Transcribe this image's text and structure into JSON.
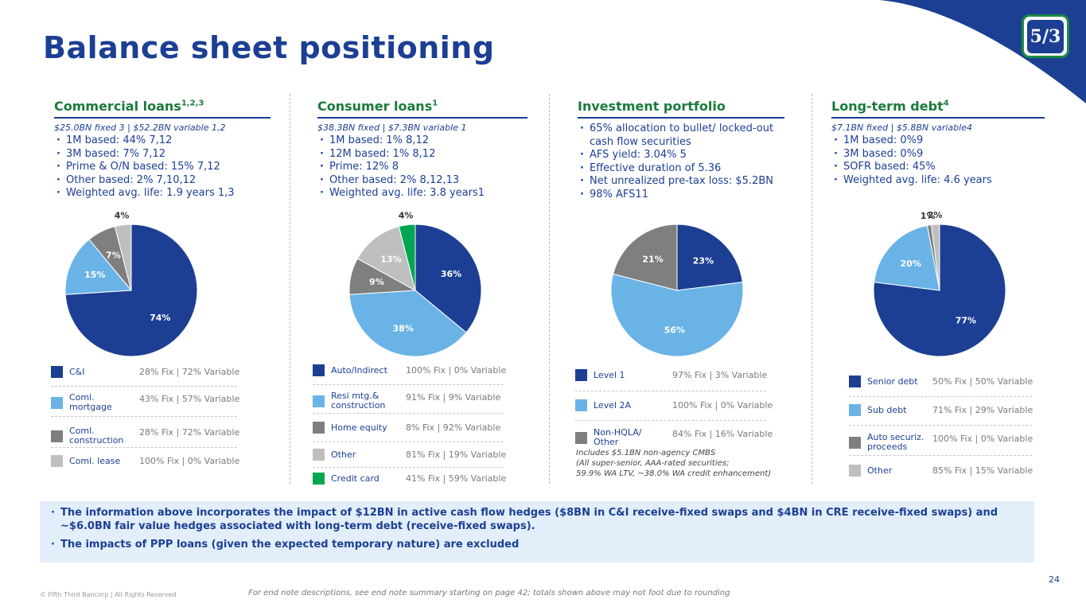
{
  "title": "Balance sheet positioning",
  "page_number": "24",
  "footnote": "For end note descriptions, see end note summary starting on page 42; totals shown above may not foot due to rounding",
  "copyright": "© Fifth Third Bancorp | All Rights Reserved",
  "logo_text": "5/3",
  "colors": {
    "navy": "#1c3f94",
    "light_blue": "#69b3e7",
    "dark_gray": "#7f7f7f",
    "light_gray": "#bfbfbf",
    "green": "#00a651",
    "title_green": "#1a7a3c"
  },
  "columns": [
    {
      "title": "Commercial loans",
      "title_sup": "1,2,3",
      "subtitle": "$25.0BN fixed 3 | $52.2BN variable 1,2",
      "bullets": [
        "1M based: 44% 7,12",
        "3M based: 7% 7,12",
        "Prime & O/N based: 15% 7,12",
        "Other based: 2% 7,10,12",
        "Weighted avg. life: 1.9 years 1,3"
      ]
    },
    {
      "title": "Consumer loans",
      "title_sup": "1",
      "subtitle": "$38.3BN fixed | $7.3BN variable 1",
      "bullets": [
        "1M based: 1% 8,12",
        "12M based: 1% 8,12",
        "Prime: 12% 8",
        "Other based: 2% 8,12,13",
        "Weighted avg. life: 3.8 years1"
      ]
    },
    {
      "title": "Investment portfolio",
      "title_sup": "",
      "subtitle": "",
      "bullets": [
        "65% allocation to bullet/ locked-out cash flow securities",
        "AFS yield: 3.04% 5",
        "Effective duration of 5.36",
        "Net unrealized pre-tax loss: $5.2BN",
        "98% AFS11"
      ]
    },
    {
      "title": "Long-term debt",
      "title_sup": "4",
      "subtitle": "$7.1BN fixed | $5.8BN variable4",
      "bullets": [
        "1M based: 0%9",
        "3M based: 0%9",
        "SOFR based: 45%",
        "Weighted avg. life: 4.6 years"
      ]
    }
  ],
  "chart_data": [
    {
      "type": "pie",
      "title": "Commercial loans",
      "categories": [
        "C&I",
        "Coml. mortgage",
        "Coml. construction",
        "Coml. lease"
      ],
      "values": [
        74,
        15,
        7,
        4
      ],
      "labels": [
        "74%",
        "15%",
        "7%",
        "4%"
      ],
      "colors": [
        "#1c3f94",
        "#69b3e7",
        "#7f7f7f",
        "#bfbfbf"
      ],
      "fix_variable": [
        "28% Fix | 72% Variable",
        "43% Fix | 57% Variable",
        "28% Fix | 72% Variable",
        "100% Fix | 0% Variable"
      ]
    },
    {
      "type": "pie",
      "title": "Consumer loans",
      "categories": [
        "Auto/Indirect",
        "Resi mtg.& construction",
        "Home equity",
        "Other",
        "Credit card"
      ],
      "values": [
        36,
        38,
        9,
        13,
        4
      ],
      "labels": [
        "36%",
        "38%",
        "9%",
        "13%",
        "4%"
      ],
      "colors": [
        "#1c3f94",
        "#69b3e7",
        "#7f7f7f",
        "#bfbfbf",
        "#00a651"
      ],
      "fix_variable": [
        "100% Fix | 0% Variable",
        "91% Fix | 9% Variable",
        "8% Fix | 92% Variable",
        "81% Fix | 19% Variable",
        "41% Fix | 59% Variable"
      ]
    },
    {
      "type": "pie",
      "title": "Investment portfolio",
      "categories": [
        "Level 1",
        "Level 2A",
        "Non-HQLA/ Other"
      ],
      "values": [
        23,
        56,
        21
      ],
      "labels": [
        "23%",
        "56%",
        "21%"
      ],
      "colors": [
        "#1c3f94",
        "#69b3e7",
        "#7f7f7f"
      ],
      "fix_variable": [
        "97% Fix | 3% Variable",
        "100% Fix | 0% Variable",
        "84% Fix | 16% Variable"
      ]
    },
    {
      "type": "pie",
      "title": "Long-term debt",
      "categories": [
        "Senior debt",
        "Sub debt",
        "Auto securiz. proceeds",
        "Other"
      ],
      "values": [
        77,
        20,
        1,
        2
      ],
      "labels": [
        "77%",
        "20%",
        "1%",
        "2%"
      ],
      "colors": [
        "#1c3f94",
        "#69b3e7",
        "#7f7f7f",
        "#bfbfbf"
      ],
      "fix_variable": [
        "50% Fix | 50% Variable",
        "71% Fix | 29% Variable",
        "100% Fix | 0% Variable",
        "85% Fix | 15% Variable"
      ]
    }
  ],
  "investment_note": [
    "Includes $5.1BN non-agency CMBS",
    "(All super-senior, AAA-rated securities;",
    "59.9% WA LTV, ~38.0% WA credit enhancement)"
  ],
  "banner": [
    "The information above incorporates the impact of $12BN in active cash flow hedges ($8BN in C&I receive-fixed swaps and $4BN in CRE receive-fixed swaps) and ~$6.0BN fair value hedges associated with long-term debt (receive-fixed swaps).",
    "The impacts of PPP loans (given the expected temporary nature) are excluded"
  ]
}
